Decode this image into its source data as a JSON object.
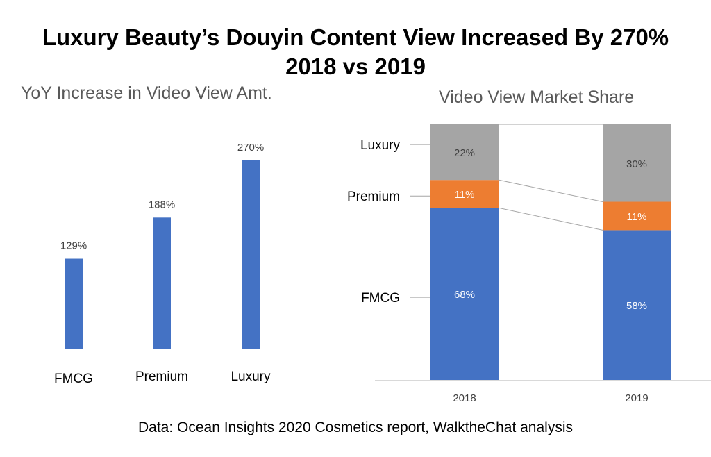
{
  "title_line1": "Luxury  Beauty’s Douyin Content View Increased By 270%",
  "title_line2": "2018 vs 2019",
  "source": "Data: Ocean Insights 2020 Cosmetics report, WalktheChat analysis",
  "colors": {
    "bar": "#4472C4",
    "fmcg": "#4472C4",
    "premium": "#ED7D31",
    "luxury": "#A5A5A5"
  },
  "chart_data": [
    {
      "type": "bar",
      "title": "YoY Increase in Video View Amt.",
      "categories": [
        "FMCG",
        "Premium",
        "Luxury"
      ],
      "values": [
        129,
        188,
        270
      ],
      "data_labels": [
        "129%",
        "188%",
        "270%"
      ],
      "ylim": [
        0,
        270
      ]
    },
    {
      "type": "bar",
      "stacked": true,
      "title": "Video View Market Share",
      "categories": [
        "2018",
        "2019"
      ],
      "series": [
        {
          "name": "FMCG",
          "values": [
            68,
            58
          ],
          "labels": [
            "68%",
            "58%"
          ],
          "color": "#4472C4"
        },
        {
          "name": "Premium",
          "values": [
            11,
            11
          ],
          "labels": [
            "11%",
            "11%"
          ],
          "color": "#ED7D31"
        },
        {
          "name": "Luxury",
          "values": [
            22,
            30
          ],
          "labels": [
            "22%",
            "30%"
          ],
          "color": "#A5A5A5"
        }
      ],
      "ylim": [
        0,
        100
      ],
      "legend": "left"
    }
  ]
}
